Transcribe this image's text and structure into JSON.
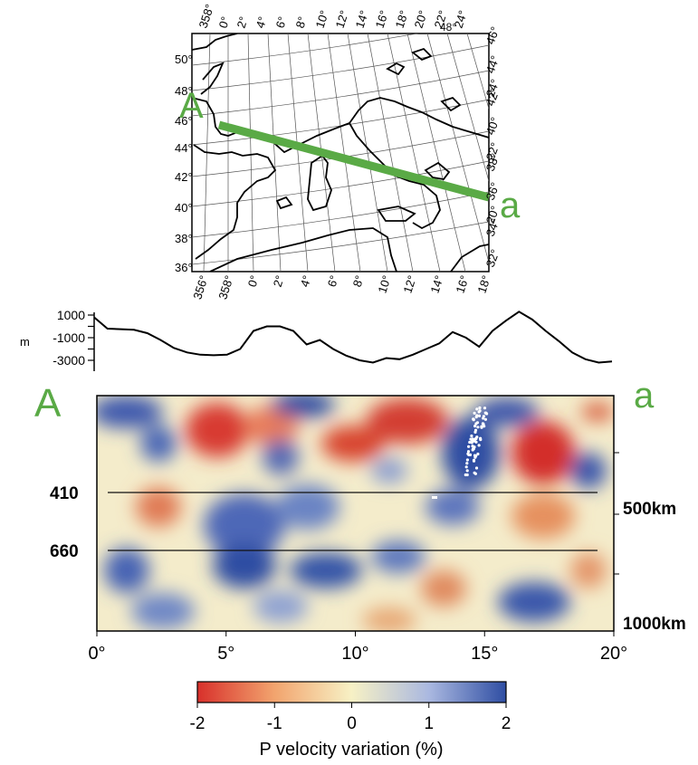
{
  "map": {
    "left_lat_labels": [
      "50°",
      "48°",
      "46°",
      "44°",
      "42°",
      "40°",
      "38°",
      "36°"
    ],
    "top_lon_labels": [
      "358°",
      "0°",
      "2°",
      "4°",
      "6°",
      "8°",
      "10°",
      "12°",
      "14°",
      "16°",
      "18°",
      "20°",
      "22°",
      "24°"
    ],
    "bottom_lon_labels": [
      "356°",
      "358°",
      "0°",
      "2°",
      "4°",
      "6°",
      "8°",
      "10°",
      "12°",
      "14°",
      "16°",
      "18°"
    ],
    "right_labels": [
      "46°",
      "44°",
      "24°",
      "42°",
      "40°",
      "22°",
      "38°",
      "36°",
      "20°",
      "34°",
      "32°"
    ],
    "extra_top_label": "48°",
    "profile_start_label": "A",
    "profile_end_label": "a",
    "profile_color": "#5aaa46"
  },
  "topography": {
    "ticks": [
      "1000",
      "-1000",
      "-3000"
    ],
    "unit": "m",
    "profile_heights_m": [
      800,
      -200,
      -250,
      -300,
      -600,
      -1200,
      -1900,
      -2300,
      -2500,
      -2550,
      -2500,
      -2000,
      -400,
      0,
      0,
      -400,
      -1600,
      -1200,
      -2000,
      -2600,
      -3000,
      -3200,
      -2800,
      -2900,
      -2500,
      -2000,
      -1500,
      -500,
      -1000,
      -1800,
      -400,
      500,
      1300,
      600,
      -400,
      -1300,
      -2300,
      -2900,
      -3200,
      -3100
    ]
  },
  "section": {
    "start_label": "A",
    "end_label": "a",
    "left_labels": [
      "410",
      "660"
    ],
    "right_labels": [
      "500km",
      "1000km"
    ],
    "x_ticks": [
      "0°",
      "5°",
      "10°",
      "15°",
      "20°"
    ],
    "x_range_deg": [
      0,
      20
    ],
    "depth_range_km": [
      0,
      1000
    ],
    "discontinuities_km": [
      410,
      660
    ],
    "earthquake_color": "#ffffff"
  },
  "colorbar": {
    "ticks": [
      "-2",
      "-1",
      "0",
      "1",
      "2"
    ],
    "label": "P velocity variation (%)",
    "colors": [
      "#d8302b",
      "#f2a46e",
      "#f7f1c5",
      "#aab8e0",
      "#2f4ea3"
    ]
  }
}
